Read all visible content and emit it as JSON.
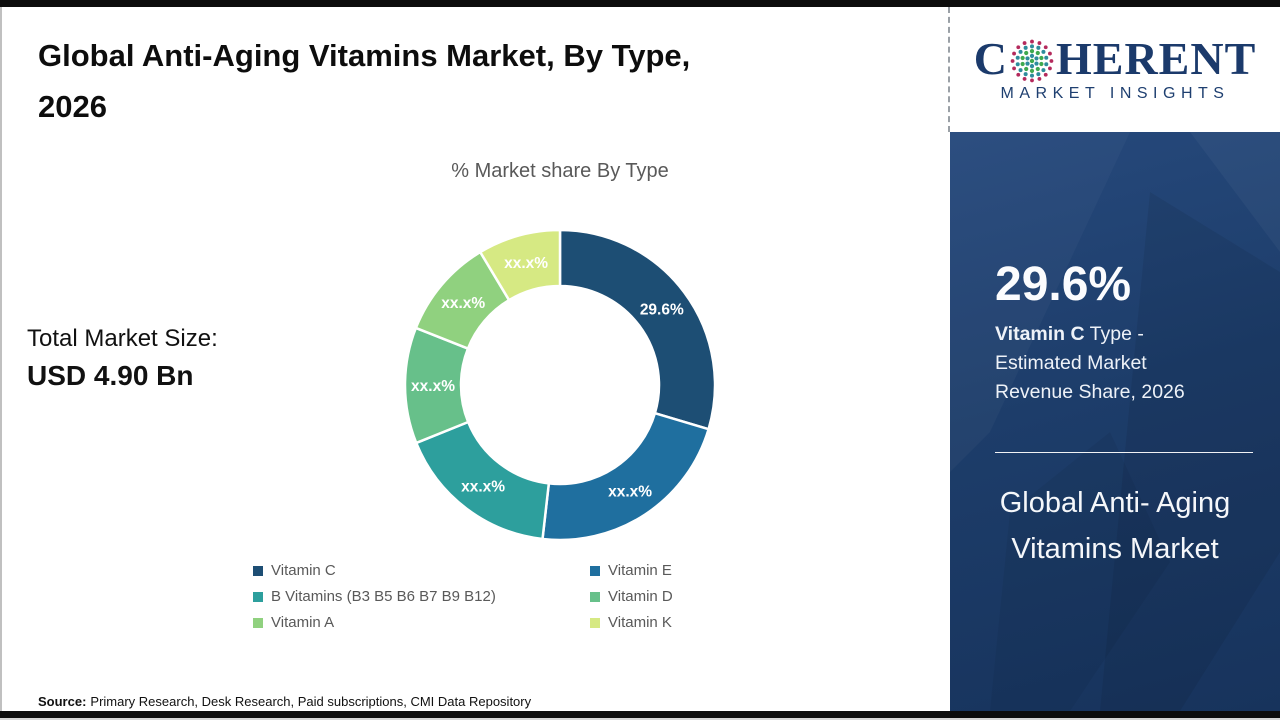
{
  "page": {
    "title_line1": "Global Anti-Aging Vitamins Market, By Type,",
    "title_line2": "2026"
  },
  "total_market": {
    "label": "Total Market Size:",
    "value": "USD 4.90 Bn"
  },
  "chart_data": {
    "type": "pie",
    "donut": true,
    "title": "% Market share By Type",
    "legend_position": "bottom",
    "start_angle_deg": 0,
    "series": [
      {
        "name": "Vitamin C",
        "value": 29.6,
        "display_label": "29.6%",
        "color": "#1d4e74"
      },
      {
        "name": "Vitamin E",
        "value": 22.2,
        "display_label": "xx.x%",
        "color": "#1f6f9f"
      },
      {
        "name": "B Vitamins (B3 B5 B6 B7 B9 B12)",
        "value": 17.1,
        "display_label": "xx.x%",
        "color": "#2d9f9d"
      },
      {
        "name": "Vitamin D",
        "value": 12.1,
        "display_label": "xx.x%",
        "color": "#67c08a"
      },
      {
        "name": "Vitamin A",
        "value": 10.4,
        "display_label": "xx.x%",
        "color": "#90d17f"
      },
      {
        "name": "Vitamin K",
        "value": 8.6,
        "display_label": "xx.x%",
        "color": "#d6e983"
      }
    ]
  },
  "source": {
    "label": "Source:",
    "text": "Primary Research, Desk Research, Paid subscriptions, CMI Data Repository"
  },
  "sidebar": {
    "logo": {
      "prefix": "C",
      "suffix": "HERENT",
      "tagline": "MARKET INSIGHTS",
      "globe_icon_colors": [
        "#b42a5c",
        "#2d8c9c",
        "#3fa94f"
      ]
    },
    "stat_value": "29.6%",
    "stat_name_bold": "Vitamin C",
    "stat_name_rest": " Type - Estimated Market Revenue Share, 2026",
    "market_name": "Global Anti- Aging Vitamins Market",
    "panel_color": "#1d3d6a"
  }
}
